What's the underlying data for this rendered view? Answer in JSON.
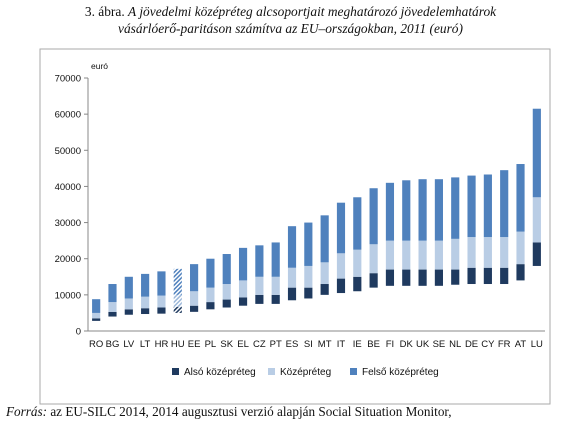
{
  "caption": {
    "label": "3. ábra.",
    "title": "A jövedelmi középréteg alcsoportjait meghatározó jövedelemhatárok",
    "subtitle": "vásárlóerő-paritáson számítva az EU–országokban, 2011 (euró)"
  },
  "source": {
    "label": "Forrás:",
    "text": "az EU-SILC 2014, 2014 augusztusi verzió alapján Social Situation Monitor,"
  },
  "colors": {
    "also": "#1f3a5f",
    "kozep": "#b9cde5",
    "felso": "#4f81bd",
    "axis": "#888888",
    "border": "#aaaaaa"
  },
  "chart_data": {
    "type": "bar",
    "stacked": true,
    "unit_label": "euró",
    "ylim": [
      0,
      70000
    ],
    "yticks": [
      0,
      10000,
      20000,
      30000,
      40000,
      50000,
      60000,
      70000
    ],
    "grid": false,
    "legend_position": "bottom",
    "categories": [
      "RO",
      "BG",
      "LV",
      "LT",
      "HR",
      "HU",
      "EE",
      "PL",
      "SK",
      "EL",
      "CZ",
      "PT",
      "ES",
      "SI",
      "MT",
      "IT",
      "IE",
      "BE",
      "FI",
      "DK",
      "UK",
      "SE",
      "NL",
      "DE",
      "CY",
      "FR",
      "AT",
      "LU"
    ],
    "highlight": [
      "HU"
    ],
    "series": [
      {
        "name": "Alsó középréteg",
        "key": "also",
        "low": [
          2800,
          4000,
          4500,
          4700,
          4800,
          5000,
          5300,
          6000,
          6500,
          7000,
          7500,
          7500,
          8500,
          9000,
          10000,
          10500,
          11000,
          12000,
          12500,
          12500,
          12500,
          12500,
          12800,
          13000,
          13000,
          13000,
          14000,
          18000
        ],
        "high": [
          3500,
          5300,
          6000,
          6300,
          6500,
          6700,
          7000,
          8000,
          8700,
          9300,
          10000,
          10000,
          12000,
          12000,
          13000,
          14500,
          15000,
          16000,
          17000,
          17000,
          17000,
          17000,
          17000,
          17500,
          17500,
          17500,
          18500,
          24500
        ]
      },
      {
        "name": "Középréteg",
        "key": "kozep",
        "low": [
          3500,
          5300,
          6000,
          6300,
          6500,
          6700,
          7000,
          8000,
          8700,
          9300,
          10000,
          10000,
          12000,
          12000,
          13000,
          14500,
          15000,
          16000,
          17000,
          17000,
          17000,
          17000,
          17000,
          17500,
          17500,
          17500,
          18500,
          24500
        ],
        "high": [
          5000,
          8000,
          9000,
          9500,
          9800,
          10000,
          11000,
          12000,
          13000,
          14000,
          15000,
          15000,
          17500,
          18000,
          19000,
          21500,
          22500,
          24000,
          25000,
          25000,
          25000,
          25000,
          25500,
          26000,
          26000,
          26000,
          27500,
          37000
        ]
      },
      {
        "name": "Felső középréteg",
        "key": "felso",
        "low": [
          5000,
          8000,
          9000,
          9500,
          9800,
          10000,
          11000,
          12000,
          13000,
          14000,
          15000,
          15000,
          17500,
          18000,
          19000,
          21500,
          22500,
          24000,
          25000,
          25000,
          25000,
          25000,
          25500,
          26000,
          26000,
          26000,
          27500,
          37000
        ],
        "high": [
          8800,
          13000,
          15000,
          15800,
          16500,
          17200,
          18500,
          20000,
          21300,
          23000,
          23700,
          24500,
          29000,
          30000,
          32000,
          35500,
          37000,
          39500,
          41000,
          41700,
          42000,
          42000,
          42500,
          43000,
          43300,
          44500,
          46200,
          61500
        ]
      }
    ]
  }
}
